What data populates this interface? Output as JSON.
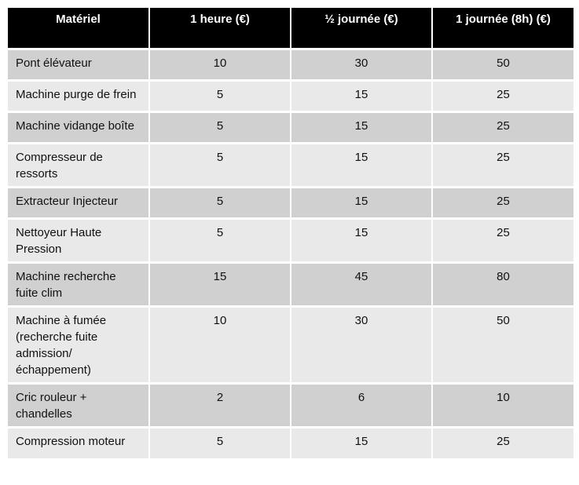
{
  "table": {
    "header": [
      "Matériel",
      "1 heure (€)",
      "½ journée (€)",
      "1 journée (8h) (€)"
    ],
    "rows": [
      [
        "Pont élévateur",
        10,
        30,
        50
      ],
      [
        "Machine purge de frein",
        5,
        15,
        25
      ],
      [
        "Machine vidange boîte",
        5,
        15,
        25
      ],
      [
        "Compresseur de ressorts",
        5,
        15,
        25
      ],
      [
        "Extracteur Injecteur",
        5,
        15,
        25
      ],
      [
        "Nettoyeur Haute Pression",
        5,
        15,
        25
      ],
      [
        "Machine recherche fuite clim",
        15,
        45,
        80
      ],
      [
        "Machine à fumée (recherche fuite admission/échappement)",
        10,
        30,
        50
      ],
      [
        "Cric rouleur + chandelles",
        2,
        6,
        10
      ],
      [
        "Compression moteur",
        5,
        15,
        25
      ]
    ]
  }
}
